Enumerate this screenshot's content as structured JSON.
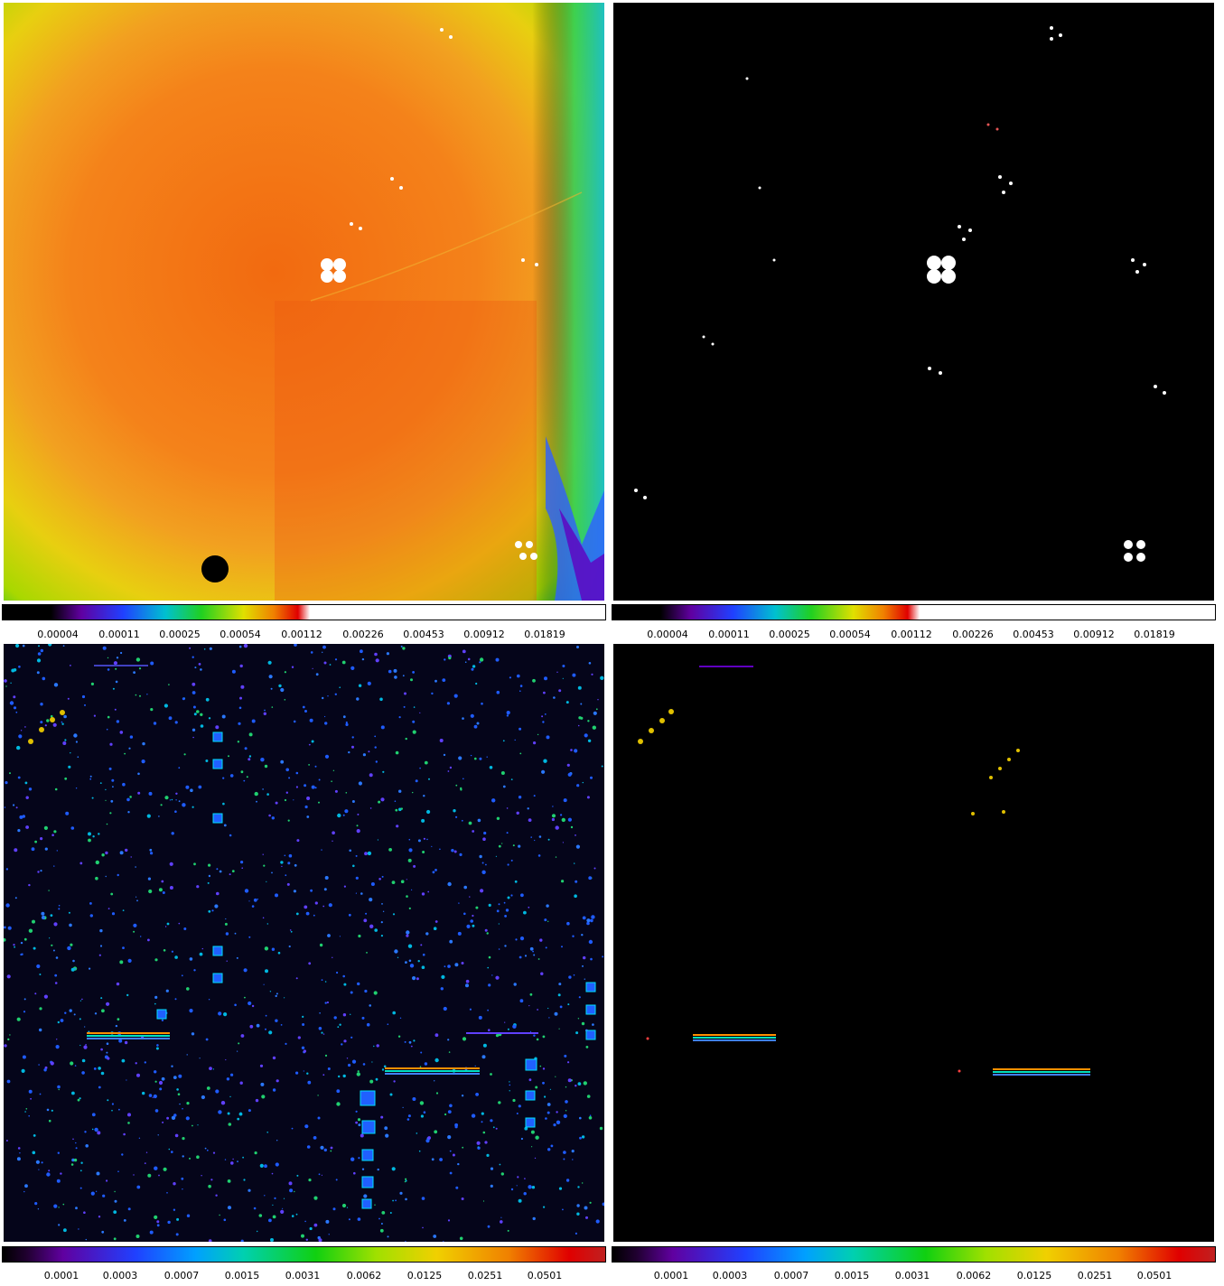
{
  "panels": [
    {
      "name": "top-left-flatfield",
      "description_id": "panel-1",
      "colormap": "spectral-black-to-white",
      "ticks": [
        "0.00004",
        "0.00011",
        "0.00025",
        "0.00054",
        "0.00112",
        "0.00226",
        "0.00453",
        "0.00912",
        "0.01819"
      ]
    },
    {
      "name": "top-right-star-field",
      "colormap": "spectral-black-to-white",
      "ticks": [
        "0.00004",
        "0.00011",
        "0.00025",
        "0.00054",
        "0.00112",
        "0.00226",
        "0.00453",
        "0.00912",
        "0.01819"
      ]
    },
    {
      "name": "bottom-left-dense-field",
      "colormap": "spectral",
      "ticks": [
        "0.0001",
        "0.0003",
        "0.0007",
        "0.0015",
        "0.0031",
        "0.0062",
        "0.0125",
        "0.0251",
        "0.0501"
      ]
    },
    {
      "name": "bottom-right-sparse-field",
      "colormap": "spectral",
      "ticks": [
        "0.0001",
        "0.0003",
        "0.0007",
        "0.0015",
        "0.0031",
        "0.0062",
        "0.0125",
        "0.0251",
        "0.0501"
      ]
    }
  ],
  "colors": {
    "background": "#000000",
    "orange": "#f5820f",
    "yellow": "#e8d900",
    "green": "#5ec800",
    "blue": "#2060ff",
    "cyan": "#00d0e0",
    "star": "#ffffff"
  }
}
